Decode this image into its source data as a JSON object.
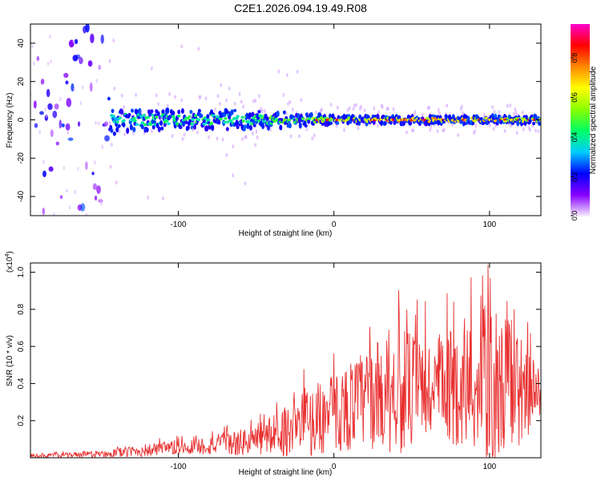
{
  "figure_title": "C2E1.2026.094.19.49.R08",
  "colors": {
    "snr_line": "#e83030",
    "axis": "#000000",
    "colorbar_stops": [
      "#f8f0ff",
      "#8800ff",
      "#0000ff",
      "#00ccff",
      "#00ff66",
      "#88ff00",
      "#ffff00",
      "#ff8800",
      "#ff0000",
      "#ff00cc"
    ]
  },
  "chart_data": [
    {
      "type": "heatmap",
      "title": "",
      "xlabel": "Height of straight line (km)",
      "ylabel": "Frequency (Hz)",
      "xlim": [
        -195,
        133
      ],
      "ylim": [
        -50,
        50
      ],
      "x_ticks": [
        -100,
        0,
        100
      ],
      "x_tick_labels": [
        "-100",
        "0",
        "100"
      ],
      "y_ticks": [
        -40,
        -20,
        0,
        20,
        40
      ],
      "y_tick_labels": [
        "-40",
        "-20",
        "0",
        "20",
        "40"
      ],
      "colorbar": {
        "label": "Normalized spectral amplitude",
        "range": [
          0,
          0.97
        ],
        "ticks": [
          0.0,
          0.2,
          0.4,
          0.6,
          0.8
        ],
        "tick_labels": [
          "0.0",
          "0.2",
          "0.4",
          "0.6",
          "0.8"
        ]
      },
      "description_points": [
        {
          "x": -170,
          "freq_spread": 45,
          "amp": 0.1
        },
        {
          "x": -140,
          "freq_spread": 6,
          "amp": 0.4
        },
        {
          "x": -100,
          "freq_spread": 5,
          "amp": 0.45
        },
        {
          "x": -60,
          "freq_spread": 5,
          "amp": 0.45
        },
        {
          "x": -30,
          "freq_spread": 4,
          "amp": 0.5
        },
        {
          "x": 0,
          "freq_spread": 2,
          "amp": 0.6
        },
        {
          "x": 50,
          "freq_spread": 2,
          "amp": 0.75
        },
        {
          "x": 100,
          "freq_spread": 2,
          "amp": 0.7
        },
        {
          "x": 130,
          "freq_spread": 2,
          "amp": 0.6
        }
      ]
    },
    {
      "type": "line",
      "title": "",
      "xlabel": "Height of straight line (km)",
      "ylabel": "SNR (10 * v/v)",
      "y_multiplier_label": "(x10",
      "y_multiplier_exp": "4",
      "y_multiplier_close": ")",
      "xlim": [
        -195,
        133
      ],
      "ylim": [
        0,
        1.05
      ],
      "x_ticks": [
        -100,
        0,
        100
      ],
      "x_tick_labels": [
        "-100",
        "0",
        "100"
      ],
      "y_ticks": [
        0.2,
        0.4,
        0.6,
        0.8,
        1.0
      ],
      "y_tick_labels": [
        "0.2",
        "0.4",
        "0.6",
        "0.8",
        "1.0"
      ],
      "envelope": [
        {
          "x": -195,
          "mean": 0.01,
          "amp": 0.01
        },
        {
          "x": -150,
          "mean": 0.02,
          "amp": 0.02
        },
        {
          "x": -120,
          "mean": 0.04,
          "amp": 0.04
        },
        {
          "x": -90,
          "mean": 0.06,
          "amp": 0.05
        },
        {
          "x": -60,
          "mean": 0.08,
          "amp": 0.08
        },
        {
          "x": -40,
          "mean": 0.12,
          "amp": 0.12
        },
        {
          "x": -20,
          "mean": 0.18,
          "amp": 0.2
        },
        {
          "x": 0,
          "mean": 0.24,
          "amp": 0.24
        },
        {
          "x": 20,
          "mean": 0.32,
          "amp": 0.3
        },
        {
          "x": 40,
          "mean": 0.36,
          "amp": 0.38
        },
        {
          "x": 60,
          "mean": 0.36,
          "amp": 0.34
        },
        {
          "x": 80,
          "mean": 0.38,
          "amp": 0.36
        },
        {
          "x": 100,
          "mean": 0.4,
          "amp": 0.5
        },
        {
          "x": 120,
          "mean": 0.36,
          "amp": 0.34
        },
        {
          "x": 133,
          "mean": 0.34,
          "amp": 0.14
        }
      ],
      "peaks": [
        {
          "x": 99,
          "y": 1.04
        },
        {
          "x": 102,
          "y": 0.01
        },
        {
          "x": 42,
          "y": 0.77
        },
        {
          "x": 112,
          "y": 0.74
        }
      ]
    }
  ]
}
